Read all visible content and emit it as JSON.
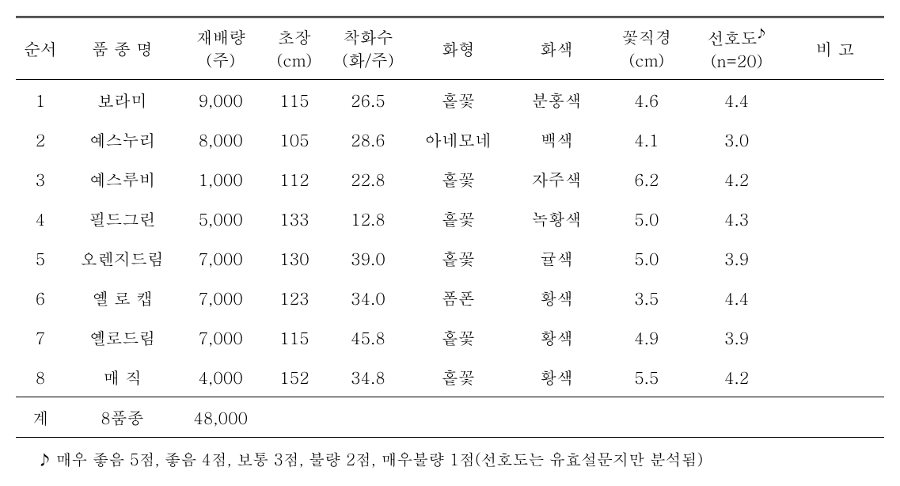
{
  "table": {
    "columns": [
      {
        "label": "순서",
        "sub": ""
      },
      {
        "label": "품 종 명",
        "sub": ""
      },
      {
        "label": "재배량",
        "sub": "(주)"
      },
      {
        "label": "초장",
        "sub": "(cm)"
      },
      {
        "label": "착화수",
        "sub": "(화/주)"
      },
      {
        "label": "화형",
        "sub": ""
      },
      {
        "label": "화색",
        "sub": ""
      },
      {
        "label": "꽃직경",
        "sub": "(cm)"
      },
      {
        "label": "선호도",
        "sub": "(n=20)",
        "mark": "♪"
      },
      {
        "label": "비 고",
        "sub": ""
      }
    ],
    "rows": [
      {
        "seq": "1",
        "name": "보라미",
        "qty": "9,000",
        "height": "115",
        "fc": "26.5",
        "shape": "홑꽃",
        "color": "분홍색",
        "dia": "4.6",
        "pref": "4.4",
        "note": ""
      },
      {
        "seq": "2",
        "name": "예스누리",
        "qty": "8,000",
        "height": "105",
        "fc": "28.6",
        "shape": "아네모네",
        "color": "백색",
        "dia": "4.1",
        "pref": "3.0",
        "note": ""
      },
      {
        "seq": "3",
        "name": "예스루비",
        "qty": "1,000",
        "height": "112",
        "fc": "22.8",
        "shape": "홑꽃",
        "color": "자주색",
        "dia": "6.2",
        "pref": "4.2",
        "note": ""
      },
      {
        "seq": "4",
        "name": "필드그린",
        "qty": "5,000",
        "height": "133",
        "fc": "12.8",
        "shape": "홑꽃",
        "color": "녹황색",
        "dia": "5.0",
        "pref": "4.3",
        "note": ""
      },
      {
        "seq": "5",
        "name": "오렌지드림",
        "qty": "7,000",
        "height": "130",
        "fc": "39.0",
        "shape": "홑꽃",
        "color": "귤색",
        "dia": "5.0",
        "pref": "3.9",
        "note": ""
      },
      {
        "seq": "6",
        "name": "옐 로 캡",
        "qty": "7,000",
        "height": "123",
        "fc": "34.0",
        "shape": "폼폰",
        "color": "황색",
        "dia": "3.5",
        "pref": "4.4",
        "note": ""
      },
      {
        "seq": "7",
        "name": "옐로드림",
        "qty": "7,000",
        "height": "115",
        "fc": "45.8",
        "shape": "홑꽃",
        "color": "황색",
        "dia": "4.9",
        "pref": "3.9",
        "note": ""
      },
      {
        "seq": "8",
        "name": "매    직",
        "qty": "4,000",
        "height": "152",
        "fc": "34.8",
        "shape": "홑꽃",
        "color": "황색",
        "dia": "5.5",
        "pref": "4.2",
        "note": ""
      }
    ],
    "total": {
      "seq": "계",
      "name": "8품종",
      "qty": "48,000"
    }
  },
  "footnote": "♪ 매우 좋음 5점, 좋음 4점, 보통 3점, 불량 2점, 매우불량 1점(선호도는 유효설문지만 분석됨)",
  "style": {
    "font_family": "Batang, serif",
    "font_size_body": 21,
    "font_size_footnote": 20,
    "text_color": "#000000",
    "background_color": "#ffffff",
    "border_color": "#000000",
    "top_border": "3px double",
    "thin_border": "1px solid",
    "bottom_border": "1.5px solid"
  }
}
